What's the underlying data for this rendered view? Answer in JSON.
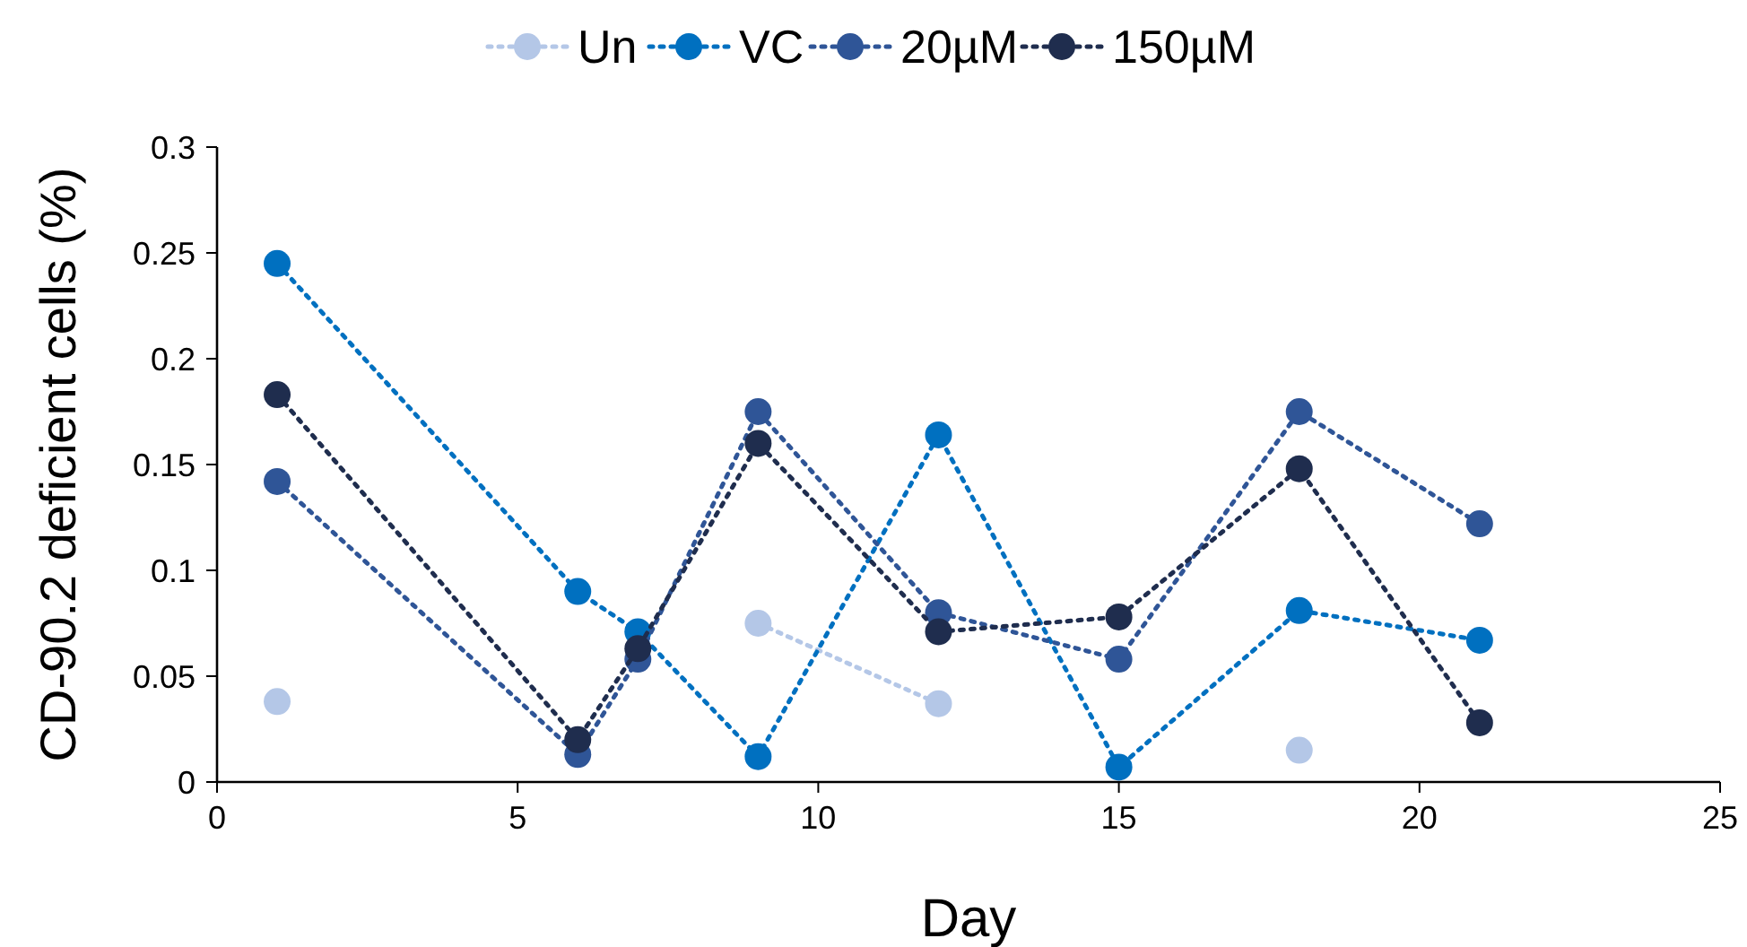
{
  "chart_data": {
    "type": "line",
    "xlabel": "Day",
    "ylabel": "CD-90.2 deficient cells (%)",
    "x": [
      1,
      6,
      7,
      9,
      12,
      15,
      18,
      21
    ],
    "series": [
      {
        "name": "Un",
        "color": "#b4c7e7",
        "values": [
          0.038,
          null,
          null,
          0.075,
          0.037,
          null,
          0.015,
          null
        ]
      },
      {
        "name": "VC",
        "color": "#0070c0",
        "values": [
          0.245,
          0.09,
          0.071,
          0.012,
          0.164,
          0.007,
          0.081,
          0.067
        ]
      },
      {
        "name": "20µM",
        "color": "#2f5597",
        "values": [
          0.142,
          0.013,
          0.058,
          0.175,
          0.08,
          0.058,
          0.175,
          0.122
        ]
      },
      {
        "name": "150µM",
        "color": "#1f2d4e",
        "values": [
          0.183,
          0.02,
          0.063,
          0.16,
          0.071,
          0.078,
          0.148,
          0.028
        ]
      }
    ],
    "xlim": [
      0,
      25
    ],
    "xticks": [
      0,
      5,
      10,
      15,
      20,
      25
    ],
    "ylim": [
      0,
      0.3
    ],
    "yticks": [
      0,
      0.05,
      0.1,
      0.15,
      0.2,
      0.25,
      0.3
    ],
    "grid": false,
    "legend": "top",
    "marker": "circle",
    "line_style": "dotted"
  }
}
